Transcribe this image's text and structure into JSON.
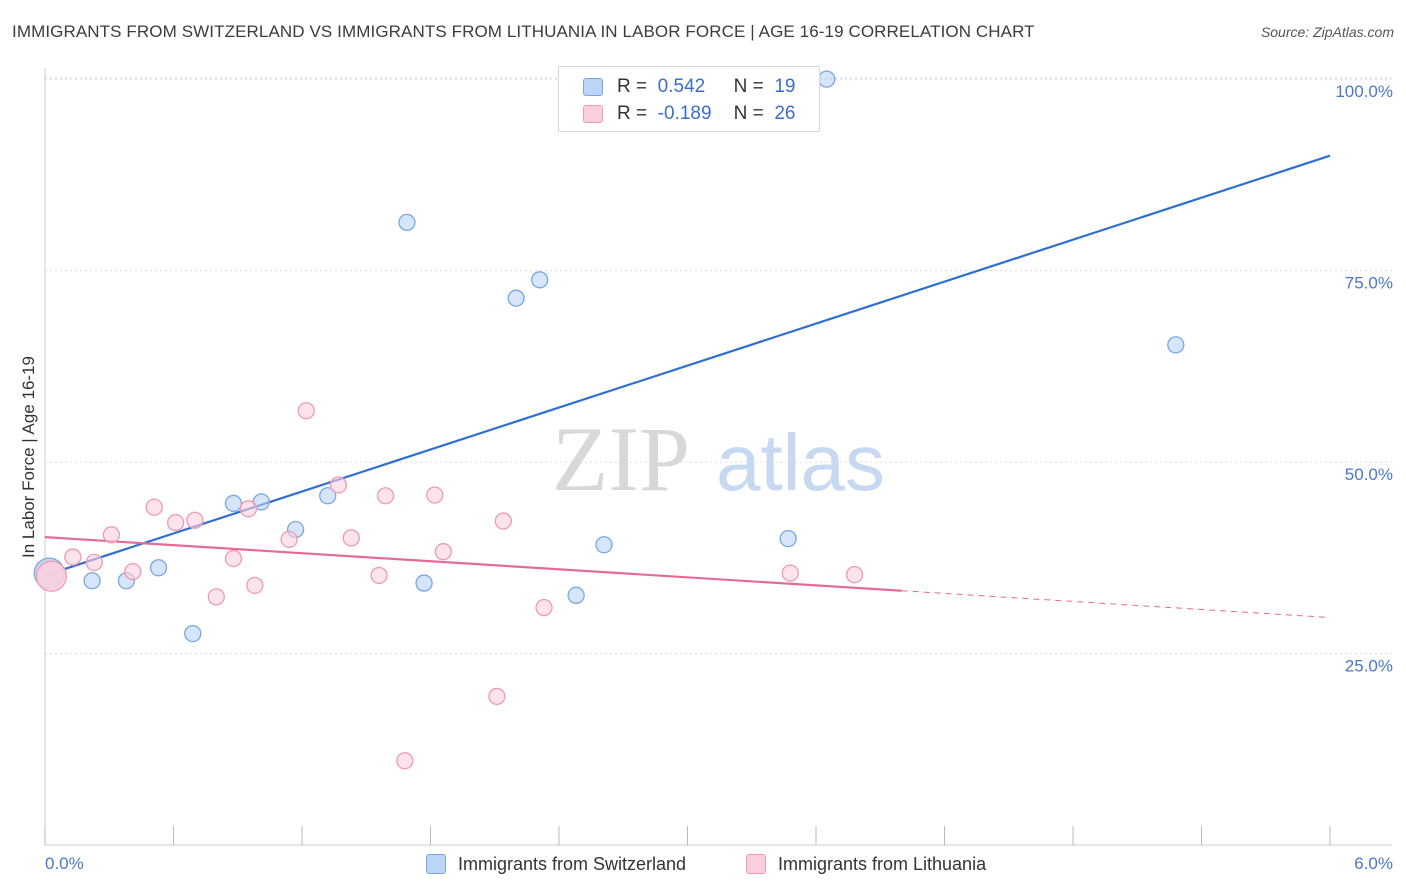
{
  "title": "IMMIGRANTS FROM SWITZERLAND VS IMMIGRANTS FROM LITHUANIA IN LABOR FORCE | AGE 16-19 CORRELATION CHART",
  "source": "Source: ZipAtlas.com",
  "watermark": {
    "zip": "ZIP",
    "atlas": "atlas"
  },
  "legend": {
    "rows": [
      {
        "r_label": "R =",
        "r_value": "0.542",
        "n_label": "N =",
        "n_value": "19",
        "color": "#7aa6e0",
        "fill": "#bcd4f6"
      },
      {
        "r_label": "R =",
        "r_value": "-0.189",
        "n_label": "N =",
        "n_value": "26",
        "color": "#ee9ab5",
        "fill": "#fbd0dd"
      }
    ]
  },
  "bottom_legend": [
    {
      "label": "Immigrants from Switzerland"
    },
    {
      "label": "Immigrants from Lithuania"
    }
  ],
  "chart_data": {
    "type": "scatter",
    "ylabel": "In Labor Force | Age 16-19",
    "xlabel": "",
    "xlim": [
      0,
      6
    ],
    "ylim": [
      0,
      102.5
    ],
    "x_tick_labels": [
      "0.0%",
      "6.0%"
    ],
    "y_ticks": [
      25,
      50,
      75,
      100
    ],
    "y_tick_labels": [
      "25.0%",
      "50.0%",
      "75.0%",
      "100.0%"
    ],
    "grid": true,
    "series": [
      {
        "name": "Immigrants from Switzerland",
        "stroke": "#7aa6e0",
        "fill": "#bcd4f6",
        "line_color": "#2f6fd0",
        "points": [
          [
            0.02,
            35.5
          ],
          [
            0.22,
            34.5
          ],
          [
            0.38,
            34.5
          ],
          [
            0.53,
            36.2
          ],
          [
            0.69,
            27.6
          ],
          [
            0.88,
            44.6
          ],
          [
            1.01,
            44.8
          ],
          [
            1.17,
            41.2
          ],
          [
            1.32,
            45.6
          ],
          [
            1.69,
            81.3
          ],
          [
            1.77,
            34.2
          ],
          [
            2.2,
            71.4
          ],
          [
            2.31,
            73.8
          ],
          [
            2.48,
            32.6
          ],
          [
            2.61,
            39.2
          ],
          [
            3.47,
            40.0
          ],
          [
            3.65,
            100.0
          ],
          [
            5.28,
            65.3
          ],
          [
            2.73,
            100.0
          ]
        ],
        "trend": {
          "x0": 0.0,
          "y0": 35.2,
          "x1": 6.0,
          "y1": 90.0
        }
      },
      {
        "name": "Immigrants from Lithuania",
        "stroke": "#ee9ab5",
        "fill": "#fbd0dd",
        "line_color": "#e66a98",
        "points": [
          [
            0.03,
            35.1
          ],
          [
            0.13,
            37.6
          ],
          [
            0.23,
            36.9
          ],
          [
            0.31,
            40.5
          ],
          [
            0.41,
            35.7
          ],
          [
            0.51,
            44.1
          ],
          [
            0.61,
            42.1
          ],
          [
            0.7,
            42.4
          ],
          [
            0.8,
            32.4
          ],
          [
            0.88,
            37.4
          ],
          [
            0.95,
            43.9
          ],
          [
            0.98,
            33.9
          ],
          [
            1.14,
            39.9
          ],
          [
            1.22,
            56.7
          ],
          [
            1.37,
            47.0
          ],
          [
            1.43,
            40.1
          ],
          [
            1.56,
            35.2
          ],
          [
            1.59,
            45.6
          ],
          [
            1.68,
            11.0
          ],
          [
            1.82,
            45.7
          ],
          [
            1.86,
            38.3
          ],
          [
            2.11,
            19.4
          ],
          [
            2.14,
            42.3
          ],
          [
            2.33,
            31.0
          ],
          [
            3.48,
            35.5
          ],
          [
            3.78,
            35.3
          ]
        ],
        "trend": {
          "x0": 0.0,
          "y0": 40.2,
          "x1": 4.0,
          "y1": 33.2,
          "dash_to_x": 6.0,
          "dash_to_y": 29.7
        }
      }
    ]
  }
}
